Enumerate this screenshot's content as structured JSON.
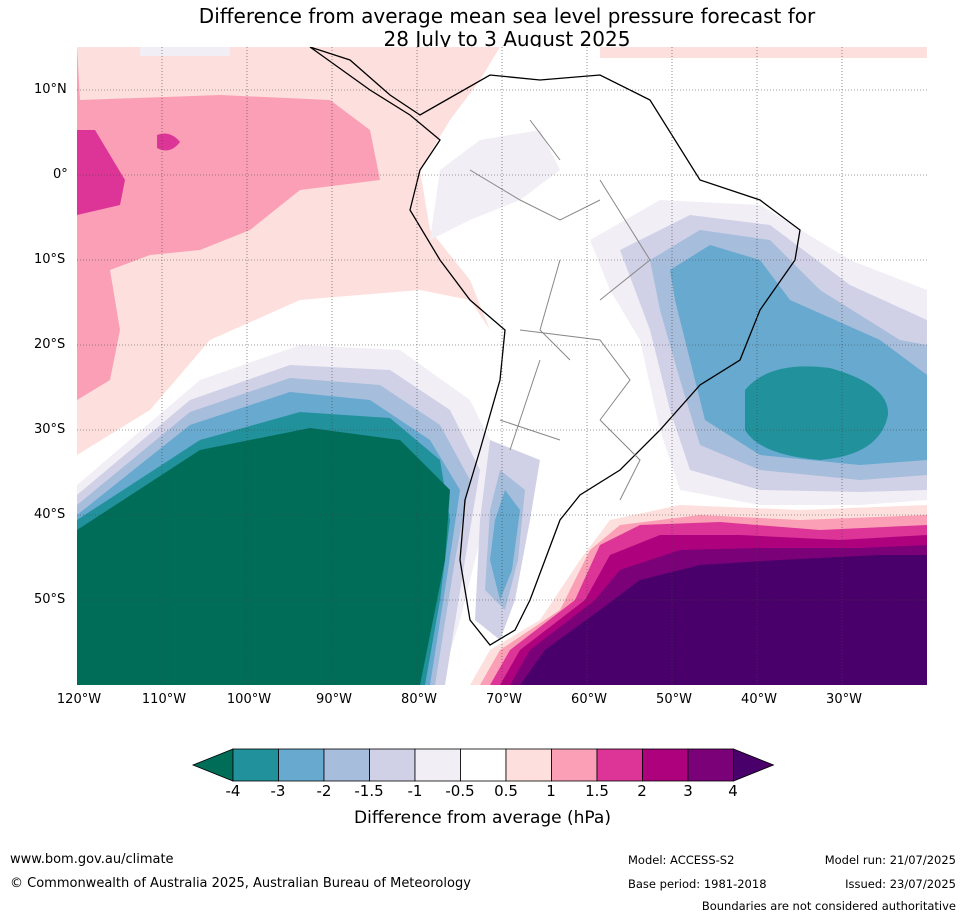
{
  "title": {
    "line1": "Difference from average mean sea level pressure forecast for",
    "line2": "28 July to 3 August 2025"
  },
  "map": {
    "lat_labels": [
      "10°N",
      "0°",
      "10°S",
      "20°S",
      "30°S",
      "40°S",
      "50°S"
    ],
    "lon_labels": [
      "120°W",
      "110°W",
      "100°W",
      "90°W",
      "80°W",
      "70°W",
      "60°W",
      "50°W",
      "40°W",
      "30°W"
    ]
  },
  "colorbar": {
    "ticks": [
      "-4",
      "-3",
      "-2",
      "-1.5",
      "-1",
      "-0.5",
      "0.5",
      "1",
      "1.5",
      "2",
      "3",
      "4"
    ],
    "colors": [
      "#006d58",
      "#21929b",
      "#67a9cf",
      "#a6bddb",
      "#d0d1e6",
      "#f1eef6",
      "#ffffff",
      "#fde0dd",
      "#fa9fb5",
      "#dd3497",
      "#ae017e",
      "#7a0177",
      "#49006a"
    ],
    "label": "Difference from average (hPa)"
  },
  "footer": {
    "website": "www.bom.gov.au/climate",
    "copyright": "© Commonwealth of Australia 2025, Australian Bureau of Meteorology",
    "model": "Model: ACCESS-S2",
    "base_period": "Base period: 1981-2018",
    "model_run": "Model run: 21/07/2025",
    "issued": "Issued: 23/07/2025",
    "disclaimer": "Boundaries are not considered authoritative"
  }
}
